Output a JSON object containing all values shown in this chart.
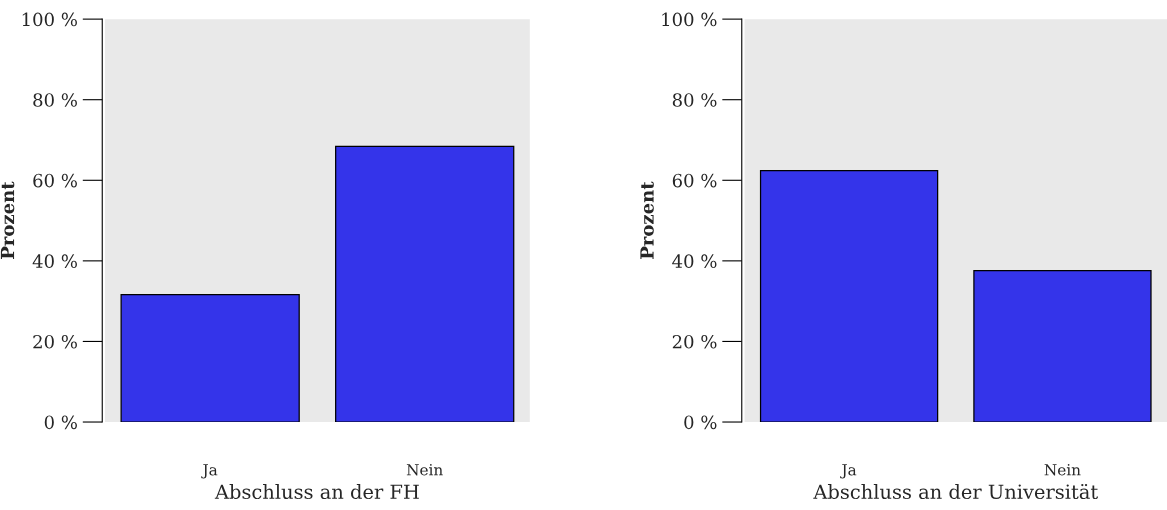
{
  "chart_data": [
    {
      "type": "bar",
      "xlabel": "Abschluss an der FH",
      "ylabel": "Prozent",
      "categories": [
        "Ja",
        "Nein"
      ],
      "values": [
        31.6,
        68.4
      ],
      "color": "#3434ea",
      "ylim": [
        0,
        100
      ],
      "yticks": [
        {
          "value": 0,
          "label": "0 %"
        },
        {
          "value": 20,
          "label": "20 %"
        },
        {
          "value": 40,
          "label": "40 %"
        },
        {
          "value": 60,
          "label": "60 %"
        },
        {
          "value": 80,
          "label": "80 %"
        },
        {
          "value": 100,
          "label": "100 %"
        }
      ],
      "grid": false,
      "legend": false
    },
    {
      "type": "bar",
      "xlabel": "Abschluss an der Universität",
      "ylabel": "Prozent",
      "categories": [
        "Ja",
        "Nein"
      ],
      "values": [
        62.4,
        37.6
      ],
      "color": "#3434ea",
      "ylim": [
        0,
        100
      ],
      "yticks": [
        {
          "value": 0,
          "label": "0 %"
        },
        {
          "value": 20,
          "label": "20 %"
        },
        {
          "value": 40,
          "label": "40 %"
        },
        {
          "value": 60,
          "label": "60 %"
        },
        {
          "value": 80,
          "label": "80 %"
        },
        {
          "value": 100,
          "label": "100 %"
        }
      ],
      "grid": false,
      "legend": false
    }
  ]
}
